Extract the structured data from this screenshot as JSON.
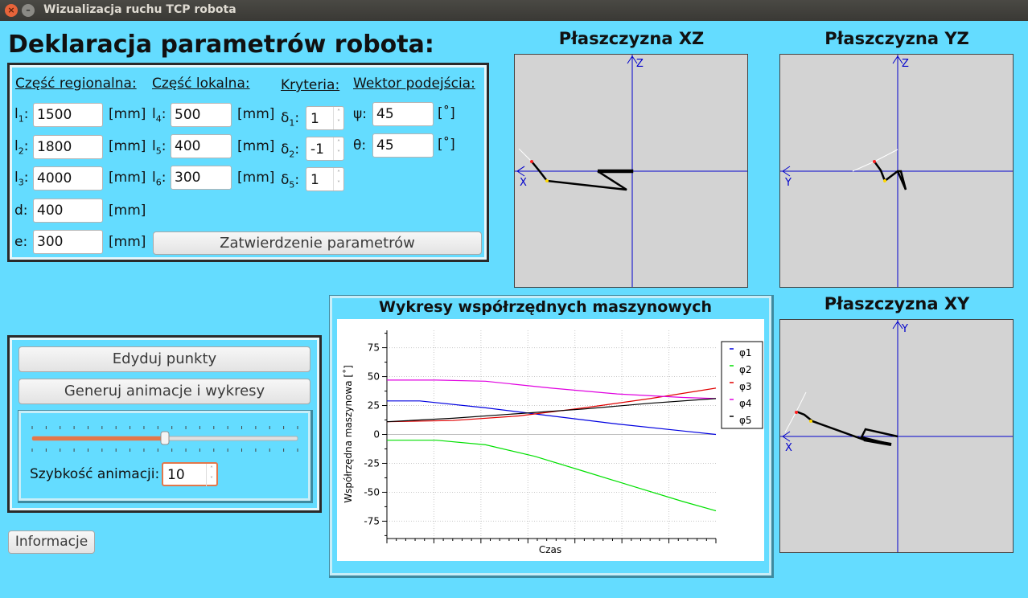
{
  "window": {
    "title": "Wizualizacja ruchu TCP robota"
  },
  "params": {
    "heading": "Deklaracja parametrów robota:",
    "headers": {
      "regional": "Część regionalna:",
      "local": "Część lokalna:",
      "criteria": "Kryteria:",
      "approach": "Wektor podejścia:"
    },
    "regional": [
      {
        "label": "l",
        "sub": "1",
        "value": "1500",
        "unit": "[mm]"
      },
      {
        "label": "l",
        "sub": "2",
        "value": "1800",
        "unit": "[mm]"
      },
      {
        "label": "l",
        "sub": "3",
        "value": "4000",
        "unit": "[mm]"
      },
      {
        "label": "d",
        "sub": "",
        "value": "400",
        "unit": "[mm]"
      },
      {
        "label": "e",
        "sub": "",
        "value": "300",
        "unit": "[mm]"
      }
    ],
    "local": [
      {
        "label": "l",
        "sub": "4",
        "value": "500",
        "unit": "[mm]"
      },
      {
        "label": "l",
        "sub": "5",
        "value": "400",
        "unit": "[mm]"
      },
      {
        "label": "l",
        "sub": "6",
        "value": "300",
        "unit": "[mm]"
      }
    ],
    "criteria": [
      {
        "label": "δ",
        "sub": "1",
        "value": "1"
      },
      {
        "label": "δ",
        "sub": "2",
        "value": "-1"
      },
      {
        "label": "δ",
        "sub": "5",
        "value": "1"
      }
    ],
    "approach": [
      {
        "label": "ψ",
        "value": "45",
        "unit": "[˚]"
      },
      {
        "label": "θ",
        "value": "45",
        "unit": "[˚]"
      }
    ],
    "confirm_label": "Zatwierdzenie parametrów"
  },
  "controls": {
    "edit_points": "Edyduj punkty",
    "generate": "Generuj animacje i wykresy",
    "speed_label": "Szybkość animacji:",
    "speed_value": "10",
    "slider_position": 0.5,
    "info": "Informacje"
  },
  "planes": {
    "xz": {
      "title": "Płaszczyzna XZ",
      "h_axis": "X",
      "v_axis": "Z"
    },
    "yz": {
      "title": "Płaszczyzna YZ",
      "h_axis": "Y",
      "v_axis": "Z"
    },
    "xy": {
      "title": "Płaszczyzna XY",
      "h_axis": "X",
      "v_axis": "Y"
    }
  },
  "chart_data": {
    "type": "line",
    "title": "Wykresy współrzędnych maszynowych",
    "xlabel": "Czas",
    "ylabel": "Współrzędna maszynowa [˚]",
    "ylim": [
      -90,
      90
    ],
    "xlim": [
      0,
      1
    ],
    "yticks": [
      75,
      50,
      25,
      0,
      -25,
      -50,
      -75
    ],
    "grid": true,
    "legend": "right",
    "series": [
      {
        "name": "φ1",
        "color": "#0000e0",
        "x": [
          0,
          0.1,
          0.3,
          0.5,
          0.7,
          0.9,
          1.0
        ],
        "y": [
          29,
          29,
          23,
          16,
          9,
          3,
          0
        ]
      },
      {
        "name": "φ2",
        "color": "#00e000",
        "x": [
          0,
          0.15,
          0.3,
          0.45,
          0.6,
          0.75,
          0.9,
          1.0
        ],
        "y": [
          -5,
          -5,
          -9,
          -19,
          -32,
          -45,
          -58,
          -66
        ]
      },
      {
        "name": "φ3",
        "color": "#e00000",
        "x": [
          0,
          0.2,
          0.4,
          0.6,
          0.8,
          1.0
        ],
        "y": [
          11,
          12,
          16,
          23,
          31,
          40
        ]
      },
      {
        "name": "φ4",
        "color": "#e000e0",
        "x": [
          0,
          0.15,
          0.3,
          0.5,
          0.7,
          0.9,
          1.0
        ],
        "y": [
          47,
          47,
          46,
          40,
          35,
          32,
          31
        ]
      },
      {
        "name": "φ5",
        "color": "#000000",
        "x": [
          0,
          0.2,
          0.4,
          0.6,
          0.8,
          1.0
        ],
        "y": [
          11,
          14,
          18,
          22,
          27,
          31
        ]
      }
    ]
  }
}
